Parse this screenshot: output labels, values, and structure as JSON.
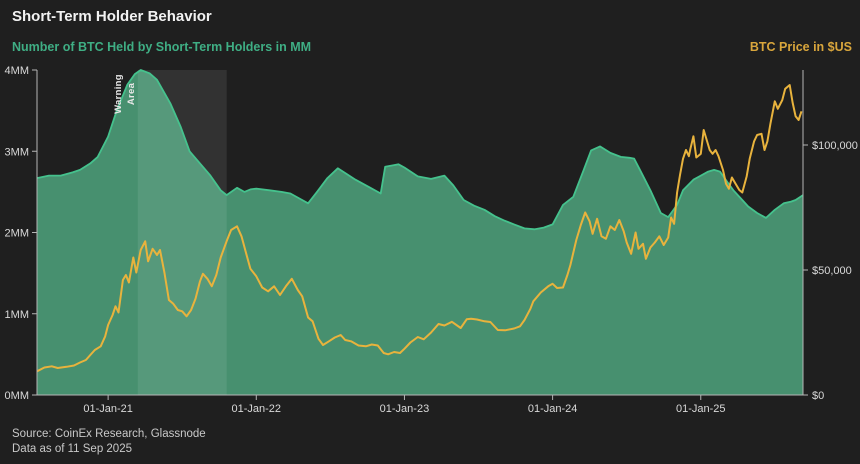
{
  "header": {
    "title": "Short-Term Holder Behavior",
    "left_axis_label": "Number of BTC Held by Short-Term Holders in MM",
    "right_axis_label": "BTC Price in $US"
  },
  "footer": {
    "source": "Source: CoinEx Research, Glassnode",
    "as_of": "Data as of 11 Sep 2025"
  },
  "colors": {
    "background": "#1f1f1f",
    "green_fill": "#47906f",
    "green_line": "#45c28d",
    "price_line": "#e8b33d",
    "overlay": "rgba(255,255,255,0.085)",
    "axis": "#b5b5b5",
    "tick_label": "#d9d9d9",
    "title": "#f2f2f2",
    "left_label": "#3fae84",
    "right_label": "#d9a63c",
    "warning_text": "#e8e8e8",
    "footer_text": "#c9c9c9"
  },
  "chart_data": {
    "type": "area",
    "title": "Short-Term Holder Behavior",
    "x_domain": [
      2020.52,
      2025.69
    ],
    "grid": false,
    "legend_position": "none",
    "x_ticks": [
      {
        "t": 2021,
        "label": "01-Jan-21"
      },
      {
        "t": 2022,
        "label": "01-Jan-22"
      },
      {
        "t": 2023,
        "label": "01-Jan-23"
      },
      {
        "t": 2024,
        "label": "01-Jan-24"
      },
      {
        "t": 2025,
        "label": "01-Jan-25"
      }
    ],
    "left_axis": {
      "label": "Number of BTC Held by Short-Term Holders in MM",
      "min": 0,
      "max": 4,
      "ticks": [
        {
          "v": 0,
          "label": "0MM"
        },
        {
          "v": 1,
          "label": "1MM"
        },
        {
          "v": 2,
          "label": "2MM"
        },
        {
          "v": 3,
          "label": "3MM"
        },
        {
          "v": 4,
          "label": "4MM"
        }
      ]
    },
    "right_axis": {
      "label": "BTC Price in $US",
      "min": 0,
      "max": 130000,
      "ticks": [
        {
          "v": 0,
          "label": "$0"
        },
        {
          "v": 50000,
          "label": "$50,000"
        },
        {
          "v": 100000,
          "label": "$100,000"
        }
      ]
    },
    "annotation": {
      "label": "Warning Area",
      "line1": "Warning",
      "line2": "Area",
      "start": 2021.2,
      "end": 2021.8
    },
    "series": [
      {
        "name": "Number of BTC Held by Short-Term Holders in MM",
        "type": "area",
        "axis": "left",
        "unit": "MM BTC",
        "points": [
          [
            2020.52,
            2.67
          ],
          [
            2020.6,
            2.7
          ],
          [
            2020.68,
            2.7
          ],
          [
            2020.76,
            2.74
          ],
          [
            2020.81,
            2.77
          ],
          [
            2020.88,
            2.85
          ],
          [
            2020.93,
            2.93
          ],
          [
            2021.0,
            3.18
          ],
          [
            2021.06,
            3.51
          ],
          [
            2021.13,
            3.82
          ],
          [
            2021.18,
            3.95
          ],
          [
            2021.22,
            4.0
          ],
          [
            2021.28,
            3.96
          ],
          [
            2021.33,
            3.88
          ],
          [
            2021.42,
            3.59
          ],
          [
            2021.49,
            3.3
          ],
          [
            2021.55,
            3.0
          ],
          [
            2021.62,
            2.85
          ],
          [
            2021.69,
            2.7
          ],
          [
            2021.76,
            2.52
          ],
          [
            2021.8,
            2.46
          ],
          [
            2021.87,
            2.55
          ],
          [
            2021.92,
            2.5
          ],
          [
            2021.96,
            2.53
          ],
          [
            2022.0,
            2.54
          ],
          [
            2022.09,
            2.52
          ],
          [
            2022.17,
            2.5
          ],
          [
            2022.23,
            2.48
          ],
          [
            2022.29,
            2.42
          ],
          [
            2022.35,
            2.36
          ],
          [
            2022.41,
            2.5
          ],
          [
            2022.48,
            2.67
          ],
          [
            2022.55,
            2.79
          ],
          [
            2022.61,
            2.72
          ],
          [
            2022.67,
            2.65
          ],
          [
            2022.77,
            2.55
          ],
          [
            2022.84,
            2.48
          ],
          [
            2022.87,
            2.81
          ],
          [
            2022.93,
            2.83
          ],
          [
            2022.96,
            2.84
          ],
          [
            2023.0,
            2.8
          ],
          [
            2023.09,
            2.69
          ],
          [
            2023.18,
            2.66
          ],
          [
            2023.27,
            2.7
          ],
          [
            2023.33,
            2.58
          ],
          [
            2023.4,
            2.4
          ],
          [
            2023.47,
            2.33
          ],
          [
            2023.54,
            2.28
          ],
          [
            2023.61,
            2.2
          ],
          [
            2023.67,
            2.15
          ],
          [
            2023.74,
            2.1
          ],
          [
            2023.81,
            2.05
          ],
          [
            2023.88,
            2.04
          ],
          [
            2023.94,
            2.06
          ],
          [
            2024.0,
            2.1
          ],
          [
            2024.07,
            2.34
          ],
          [
            2024.14,
            2.44
          ],
          [
            2024.21,
            2.77
          ],
          [
            2024.26,
            3.01
          ],
          [
            2024.32,
            3.06
          ],
          [
            2024.39,
            2.98
          ],
          [
            2024.46,
            2.93
          ],
          [
            2024.52,
            2.92
          ],
          [
            2024.55,
            2.91
          ],
          [
            2024.59,
            2.77
          ],
          [
            2024.66,
            2.52
          ],
          [
            2024.73,
            2.24
          ],
          [
            2024.78,
            2.19
          ],
          [
            2024.84,
            2.34
          ],
          [
            2024.88,
            2.52
          ],
          [
            2024.95,
            2.65
          ],
          [
            2025.0,
            2.7
          ],
          [
            2025.05,
            2.75
          ],
          [
            2025.09,
            2.77
          ],
          [
            2025.13,
            2.75
          ],
          [
            2025.18,
            2.62
          ],
          [
            2025.22,
            2.52
          ],
          [
            2025.27,
            2.42
          ],
          [
            2025.32,
            2.32
          ],
          [
            2025.38,
            2.24
          ],
          [
            2025.44,
            2.18
          ],
          [
            2025.5,
            2.28
          ],
          [
            2025.56,
            2.36
          ],
          [
            2025.61,
            2.38
          ],
          [
            2025.64,
            2.4
          ],
          [
            2025.69,
            2.46
          ]
        ]
      },
      {
        "name": "BTC Price in $US",
        "type": "line",
        "axis": "right",
        "unit": "USD",
        "points": [
          [
            2020.52,
            9500
          ],
          [
            2020.57,
            11000
          ],
          [
            2020.62,
            11500
          ],
          [
            2020.66,
            10800
          ],
          [
            2020.72,
            11300
          ],
          [
            2020.77,
            11800
          ],
          [
            2020.81,
            13000
          ],
          [
            2020.85,
            14000
          ],
          [
            2020.88,
            16000
          ],
          [
            2020.91,
            18000
          ],
          [
            2020.95,
            19500
          ],
          [
            2020.98,
            23500
          ],
          [
            2021.0,
            28000
          ],
          [
            2021.03,
            32000
          ],
          [
            2021.05,
            35500
          ],
          [
            2021.07,
            33000
          ],
          [
            2021.1,
            46000
          ],
          [
            2021.12,
            48000
          ],
          [
            2021.14,
            45000
          ],
          [
            2021.17,
            55000
          ],
          [
            2021.19,
            49000
          ],
          [
            2021.22,
            58000
          ],
          [
            2021.25,
            61500
          ],
          [
            2021.27,
            53500
          ],
          [
            2021.3,
            58500
          ],
          [
            2021.33,
            56000
          ],
          [
            2021.35,
            58000
          ],
          [
            2021.38,
            49000
          ],
          [
            2021.41,
            38000
          ],
          [
            2021.44,
            36500
          ],
          [
            2021.47,
            34000
          ],
          [
            2021.5,
            33500
          ],
          [
            2021.53,
            31500
          ],
          [
            2021.56,
            34000
          ],
          [
            2021.59,
            38500
          ],
          [
            2021.62,
            45500
          ],
          [
            2021.64,
            48500
          ],
          [
            2021.67,
            46500
          ],
          [
            2021.7,
            43500
          ],
          [
            2021.73,
            48000
          ],
          [
            2021.76,
            55000
          ],
          [
            2021.8,
            61500
          ],
          [
            2021.83,
            66000
          ],
          [
            2021.87,
            67500
          ],
          [
            2021.9,
            63500
          ],
          [
            2021.93,
            57000
          ],
          [
            2021.96,
            50500
          ],
          [
            2022.0,
            47500
          ],
          [
            2022.04,
            43000
          ],
          [
            2022.08,
            41500
          ],
          [
            2022.12,
            43500
          ],
          [
            2022.16,
            40000
          ],
          [
            2022.2,
            43500
          ],
          [
            2022.24,
            46500
          ],
          [
            2022.28,
            42000
          ],
          [
            2022.31,
            39500
          ],
          [
            2022.35,
            31000
          ],
          [
            2022.38,
            29500
          ],
          [
            2022.42,
            22500
          ],
          [
            2022.45,
            20000
          ],
          [
            2022.49,
            21500
          ],
          [
            2022.53,
            23000
          ],
          [
            2022.57,
            24000
          ],
          [
            2022.6,
            22000
          ],
          [
            2022.64,
            21500
          ],
          [
            2022.69,
            19800
          ],
          [
            2022.74,
            19500
          ],
          [
            2022.78,
            20200
          ],
          [
            2022.82,
            19800
          ],
          [
            2022.86,
            16800
          ],
          [
            2022.89,
            16300
          ],
          [
            2022.93,
            17200
          ],
          [
            2022.97,
            16800
          ],
          [
            2023.0,
            18500
          ],
          [
            2023.04,
            21000
          ],
          [
            2023.09,
            23200
          ],
          [
            2023.13,
            22300
          ],
          [
            2023.18,
            25000
          ],
          [
            2023.23,
            28400
          ],
          [
            2023.27,
            27800
          ],
          [
            2023.32,
            29300
          ],
          [
            2023.38,
            26800
          ],
          [
            2023.42,
            30300
          ],
          [
            2023.45,
            30500
          ],
          [
            2023.49,
            30200
          ],
          [
            2023.54,
            29500
          ],
          [
            2023.58,
            29200
          ],
          [
            2023.63,
            26000
          ],
          [
            2023.68,
            25900
          ],
          [
            2023.74,
            26600
          ],
          [
            2023.78,
            27500
          ],
          [
            2023.81,
            30000
          ],
          [
            2023.85,
            34500
          ],
          [
            2023.87,
            37500
          ],
          [
            2023.92,
            41000
          ],
          [
            2023.97,
            43500
          ],
          [
            2024.0,
            44500
          ],
          [
            2024.03,
            42800
          ],
          [
            2024.07,
            43000
          ],
          [
            2024.1,
            48000
          ],
          [
            2024.12,
            52000
          ],
          [
            2024.16,
            62000
          ],
          [
            2024.19,
            68000
          ],
          [
            2024.22,
            73000
          ],
          [
            2024.25,
            69500
          ],
          [
            2024.27,
            64500
          ],
          [
            2024.3,
            70500
          ],
          [
            2024.33,
            63500
          ],
          [
            2024.36,
            62500
          ],
          [
            2024.39,
            67500
          ],
          [
            2024.42,
            66000
          ],
          [
            2024.45,
            70000
          ],
          [
            2024.48,
            65500
          ],
          [
            2024.5,
            61000
          ],
          [
            2024.53,
            56500
          ],
          [
            2024.56,
            65000
          ],
          [
            2024.58,
            58500
          ],
          [
            2024.61,
            60500
          ],
          [
            2024.63,
            54500
          ],
          [
            2024.66,
            59000
          ],
          [
            2024.69,
            61000
          ],
          [
            2024.72,
            63500
          ],
          [
            2024.75,
            60000
          ],
          [
            2024.78,
            63000
          ],
          [
            2024.8,
            71000
          ],
          [
            2024.82,
            68500
          ],
          [
            2024.84,
            81000
          ],
          [
            2024.86,
            88000
          ],
          [
            2024.88,
            94500
          ],
          [
            2024.9,
            98000
          ],
          [
            2024.92,
            95500
          ],
          [
            2024.93,
            98500
          ],
          [
            2024.95,
            103500
          ],
          [
            2024.97,
            95000
          ],
          [
            2025.0,
            96500
          ],
          [
            2025.02,
            106000
          ],
          [
            2025.04,
            102000
          ],
          [
            2025.06,
            98000
          ],
          [
            2025.08,
            96500
          ],
          [
            2025.1,
            98000
          ],
          [
            2025.12,
            95500
          ],
          [
            2025.15,
            90000
          ],
          [
            2025.17,
            84500
          ],
          [
            2025.19,
            82500
          ],
          [
            2025.21,
            87000
          ],
          [
            2025.24,
            84000
          ],
          [
            2025.26,
            82000
          ],
          [
            2025.28,
            81000
          ],
          [
            2025.31,
            87500
          ],
          [
            2025.33,
            94500
          ],
          [
            2025.36,
            101500
          ],
          [
            2025.38,
            104000
          ],
          [
            2025.41,
            104500
          ],
          [
            2025.43,
            98000
          ],
          [
            2025.45,
            101500
          ],
          [
            2025.47,
            108500
          ],
          [
            2025.5,
            117500
          ],
          [
            2025.52,
            114500
          ],
          [
            2025.55,
            118000
          ],
          [
            2025.57,
            122500
          ],
          [
            2025.6,
            124000
          ],
          [
            2025.62,
            117000
          ],
          [
            2025.64,
            111500
          ],
          [
            2025.66,
            110000
          ],
          [
            2025.68,
            113500
          ]
        ]
      }
    ]
  }
}
